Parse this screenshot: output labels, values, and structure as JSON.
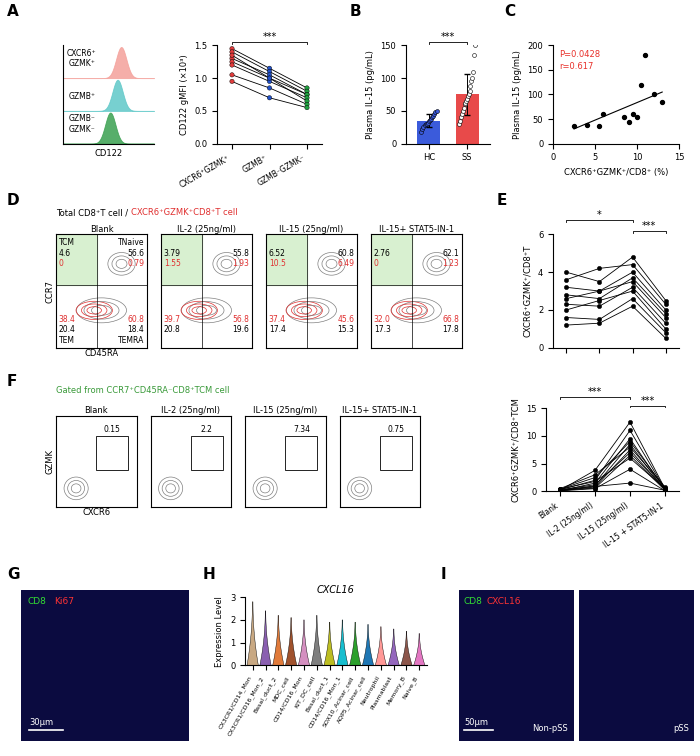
{
  "chart_data": [
    {
      "panel": "A",
      "type": "histogram_overlay",
      "x_label": "CD122",
      "tick_labels": false,
      "series": [
        {
          "name": "CXCR6⁺\nGZMK⁺",
          "color": "#f4a09a",
          "peak": 0.64
        },
        {
          "name": "GZMB⁺",
          "color": "#5fc8c8",
          "peak": 0.6
        },
        {
          "name": "GZMB⁻\nGZMK⁻",
          "color": "#3aa050",
          "peak": 0.52
        }
      ]
    },
    {
      "type": "paired_line",
      "y_label": "CD122 gMFI (×10³)",
      "categories": [
        "CXCR6⁺GZMK⁺",
        "GZMB⁺",
        "GZMB⁻GZMK⁻"
      ],
      "colors": [
        "#e03c3c",
        "#2050c8",
        "#20a040"
      ],
      "values": [
        [
          1.45,
          1.15,
          0.85
        ],
        [
          1.4,
          1.1,
          0.8
        ],
        [
          1.3,
          1.05,
          0.75
        ],
        [
          1.25,
          1.0,
          0.75
        ],
        [
          1.2,
          0.95,
          0.7
        ],
        [
          1.35,
          1.0,
          0.65
        ],
        [
          1.05,
          0.85,
          0.6
        ],
        [
          0.95,
          0.7,
          0.55
        ]
      ],
      "ylim": [
        0,
        1.5
      ],
      "yticks": [
        {
          "value": 0,
          "label": "0.0"
        },
        {
          "value": 0.5,
          "label": "0.5"
        },
        {
          "value": 1,
          "label": "1.0"
        },
        {
          "value": 1.5,
          "label": "1.5"
        }
      ],
      "significance": [
        {
          "between": [
            0,
            2
          ],
          "text": "***"
        }
      ]
    },
    {
      "panel": "B",
      "type": "bar",
      "y_label": "Plasma IL-15 (pg/mL)",
      "categories": [
        "HC",
        "SS"
      ],
      "values": [
        35,
        75
      ],
      "errors": [
        10,
        32
      ],
      "colors": [
        "#3b5bdb",
        "#e84a4a"
      ],
      "points": [
        [
          18,
          22,
          25,
          28,
          30,
          30,
          32,
          35,
          36,
          38,
          40,
          42,
          45,
          48,
          50
        ],
        [
          30,
          35,
          40,
          45,
          50,
          55,
          60,
          62,
          65,
          68,
          72,
          75,
          80,
          88,
          95,
          100,
          110,
          135,
          150
        ]
      ],
      "ylim": [
        0,
        150
      ],
      "yticks": [
        0,
        50,
        100,
        150
      ],
      "significance": [
        {
          "between": [
            0,
            1
          ],
          "text": "***"
        }
      ]
    },
    {
      "panel": "C",
      "type": "scatter",
      "x_label": "CXCR6⁺GZMK⁺/CD8⁺ (%)",
      "y_label": "Plasma IL-15 (pg/mL)",
      "x": [
        2.5,
        4,
        5.5,
        6,
        8.5,
        9,
        9.5,
        10,
        10.5,
        11,
        12,
        13
      ],
      "values": [
        35,
        38,
        35,
        60,
        55,
        45,
        60,
        55,
        120,
        180,
        100,
        85
      ],
      "fit": {
        "x": [
          2.5,
          13
        ],
        "y": [
          30,
          105
        ]
      },
      "annotations": [
        {
          "text": "P=0.0428",
          "color": "#e8302a"
        },
        {
          "text": "r=0.617",
          "color": "#e8302a"
        }
      ],
      "xlim": [
        0,
        15
      ],
      "xticks": [
        0,
        5,
        10,
        15
      ],
      "ylim": [
        0,
        200
      ],
      "yticks": [
        0,
        50,
        100,
        150,
        200
      ]
    },
    {
      "panel": "D",
      "type": "flow_quadrant",
      "header": "Total CD8⁺T cell / ",
      "header_red": "CXCR6⁺GZMK⁺CD8⁺T cell",
      "x_label": "CD45RA",
      "y_label": "CCR7",
      "quadrant_names": [
        "TCM",
        "TNaive",
        "TEM",
        "TEMRA"
      ],
      "panels": [
        {
          "title": "Blank",
          "black": [
            4.6,
            56.6,
            20.4,
            18.4
          ],
          "red": [
            0,
            0.79,
            38.4,
            60.8
          ]
        },
        {
          "title": "IL-2 (25ng/ml)",
          "black": [
            3.79,
            55.8,
            20.8,
            19.6
          ],
          "red": [
            1.55,
            1.93,
            39.7,
            56.8
          ]
        },
        {
          "title": "IL-15 (25ng/ml)",
          "black": [
            6.52,
            60.8,
            17.4,
            15.3
          ],
          "red": [
            10.5,
            6.49,
            37.4,
            45.6
          ]
        },
        {
          "title": "IL-15+ STAT5-IN-1",
          "black": [
            2.76,
            62.1,
            17.3,
            17.8
          ],
          "red": [
            0,
            1.23,
            32.0,
            66.8
          ]
        }
      ]
    },
    {
      "panel": "E",
      "type": "paired_line",
      "y_label": "CXCR6⁺GZMK⁺/CD8⁺T",
      "tick_labels": "y",
      "values": [
        [
          4.0,
          3.5,
          4.8,
          2.5
        ],
        [
          3.6,
          4.2,
          4.4,
          2.3
        ],
        [
          3.2,
          3.0,
          4.0,
          2.0
        ],
        [
          2.8,
          2.6,
          3.7,
          1.8
        ],
        [
          2.6,
          3.0,
          3.5,
          1.6
        ],
        [
          2.3,
          2.2,
          3.2,
          1.3
        ],
        [
          2.0,
          2.5,
          3.0,
          1.0
        ],
        [
          1.6,
          1.5,
          2.6,
          0.8
        ],
        [
          1.2,
          1.3,
          2.2,
          0.5
        ]
      ],
      "ylim": [
        0,
        6
      ],
      "yticks": [
        0,
        2,
        4,
        6
      ],
      "significance": [
        {
          "between": [
            0,
            2
          ],
          "text": "*"
        },
        {
          "between": [
            2,
            3
          ],
          "text": "***"
        }
      ]
    },
    {
      "panel": "F",
      "type": "flow_gate",
      "header": "Gated from CCR7⁺CD45RA⁻CD8⁺TCM cell",
      "x_label": "CXCR6",
      "y_label": "GZMK",
      "panels": [
        {
          "title": "Blank",
          "gate": 0.15
        },
        {
          "title": "IL-2 (25ng/ml)",
          "gate": 2.2
        },
        {
          "title": "IL-15 (25ng/ml)",
          "gate": 7.34
        },
        {
          "title": "IL-15+ STAT5-IN-1",
          "gate": 0.75
        }
      ]
    },
    {
      "type": "paired_line",
      "y_label": "CXCR6⁺GZMK⁺/CD8⁺TCM",
      "categories": [
        "Blank",
        "IL-2 (25ng/ml)",
        "IL-15 (25ng/ml)",
        "IL-15 + STAT5-IN-1"
      ],
      "values": [
        [
          0.2,
          3.8,
          12.5,
          0.5
        ],
        [
          0.3,
          2.0,
          11.0,
          0.4
        ],
        [
          0.1,
          1.5,
          9.5,
          0.3
        ],
        [
          0.4,
          2.5,
          9.0,
          0.6
        ],
        [
          0.2,
          1.0,
          8.5,
          0.2
        ],
        [
          0.5,
          3.0,
          8.0,
          0.8
        ],
        [
          0.1,
          0.8,
          7.5,
          0.3
        ],
        [
          0.3,
          1.2,
          7.0,
          0.4
        ],
        [
          0.2,
          0.6,
          6.5,
          0.2
        ],
        [
          0.4,
          1.8,
          6.0,
          0.5
        ],
        [
          0.1,
          0.5,
          4.0,
          0.1
        ],
        [
          0.2,
          0.9,
          1.5,
          0.2
        ]
      ],
      "ylim": [
        0,
        15
      ],
      "yticks": [
        0,
        5,
        10,
        15
      ],
      "significance": [
        {
          "between": [
            0,
            2
          ],
          "text": "***"
        },
        {
          "between": [
            2,
            3
          ],
          "text": "***"
        }
      ]
    },
    {
      "panel": "G",
      "type": "image",
      "labels": [
        {
          "text": "CD8",
          "color": "#33dd33"
        },
        {
          "text": "Ki67",
          "color": "#ff3333"
        }
      ],
      "scale_bar": "30μm"
    },
    {
      "panel": "H",
      "type": "violin",
      "title": "CXCL16",
      "y_label": "Expression Level",
      "categories": [
        "CX3CR1/CD14_Mon",
        "CX3CR1/CD16_Mon_2",
        "Basal_duct_2",
        "MDC_cell",
        "CD14/CD16_Mon",
        "KIT_DC_cell",
        "Basal_duct_1",
        "CD14/CD16_Mon_1",
        "SOX10_Acinar_cell",
        "AQP5_Acinar_cell",
        "Neutrophil",
        "Plasmablast",
        "Memory_B",
        "Naive_B"
      ],
      "max": [
        2.8,
        2.4,
        2.2,
        2.1,
        2.0,
        2.2,
        1.9,
        2.0,
        1.9,
        1.8,
        1.7,
        1.6,
        1.5,
        1.4
      ],
      "colors": [
        "#c8a882",
        "#8a5fb0",
        "#e07a3a",
        "#a0522d",
        "#d48fc0",
        "#7f7f7f",
        "#bcbd22",
        "#17becf",
        "#2ca02c",
        "#1f77b4",
        "#ff9896",
        "#9467bd",
        "#8c564b",
        "#e377c2"
      ],
      "ylim": [
        0,
        3
      ],
      "yticks": [
        0,
        1,
        2,
        3
      ]
    },
    {
      "panel": "I",
      "type": "image_pair",
      "labels": [
        {
          "text": "CD8",
          "color": "#33dd33"
        },
        {
          "text": "CXCL16",
          "color": "#ff3333"
        }
      ],
      "scale_bar": "50μm",
      "captions": [
        "Non-pSS",
        "pSS"
      ]
    }
  ]
}
